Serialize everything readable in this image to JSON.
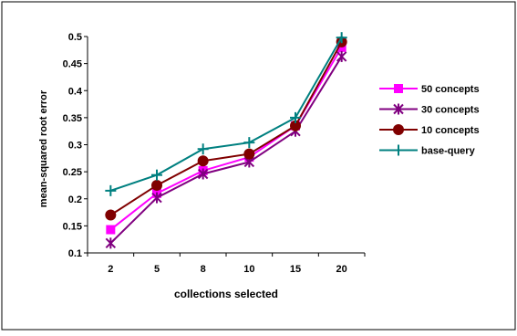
{
  "chart_data": {
    "type": "line",
    "title": "",
    "xlabel": "collections selected",
    "ylabel": "mean-squared root error",
    "categories": [
      "2",
      "5",
      "8",
      "10",
      "15",
      "20"
    ],
    "ylim": [
      0.1,
      0.5
    ],
    "yticks": [
      "0.1",
      "0.15",
      "0.2",
      "0.25",
      "0.3",
      "0.35",
      "0.4",
      "0.45",
      "0.5"
    ],
    "grid": false,
    "legend_position": "right",
    "series": [
      {
        "name": "50 concepts",
        "color": "#ff00ff",
        "marker": "square",
        "values": [
          0.143,
          0.21,
          0.252,
          0.277,
          0.335,
          0.48
        ]
      },
      {
        "name": "30 concepts",
        "color": "#800080",
        "marker": "star",
        "values": [
          0.118,
          0.202,
          0.246,
          0.268,
          0.325,
          0.463
        ]
      },
      {
        "name": "10 concepts",
        "color": "#800000",
        "marker": "circle",
        "values": [
          0.17,
          0.225,
          0.27,
          0.283,
          0.335,
          0.49
        ]
      },
      {
        "name": "base-query",
        "color": "#008080",
        "marker": "plus",
        "values": [
          0.215,
          0.244,
          0.292,
          0.304,
          0.35,
          0.498
        ]
      }
    ]
  }
}
